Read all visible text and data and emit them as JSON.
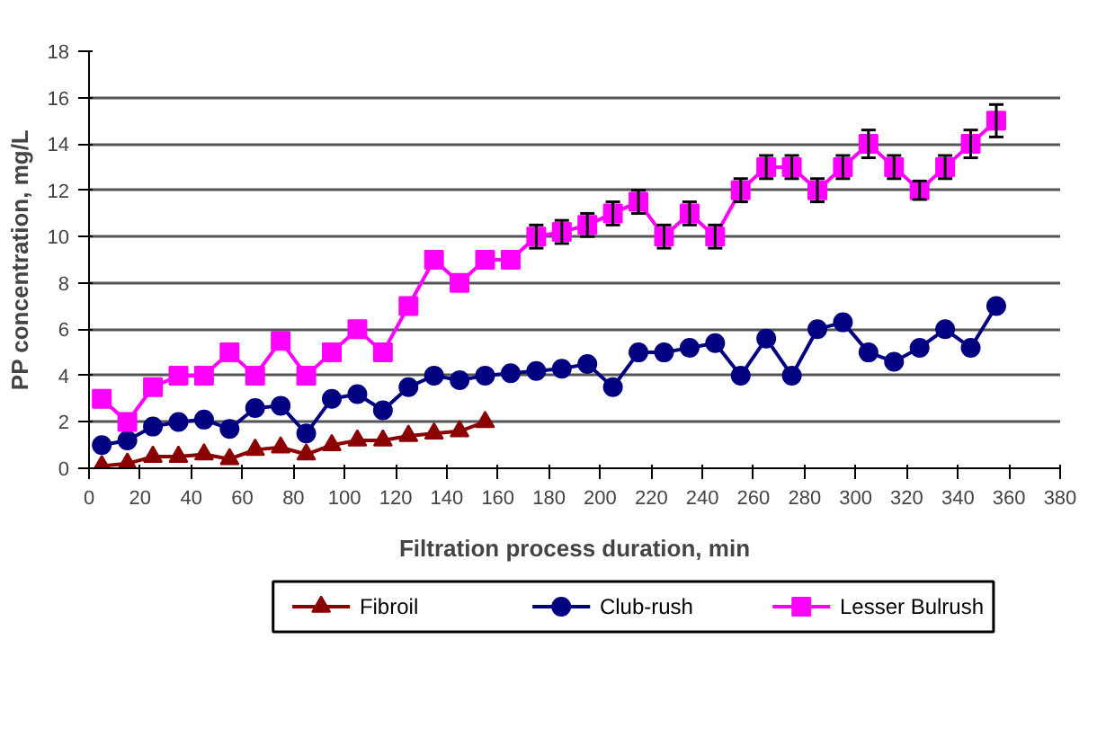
{
  "chart_data": {
    "type": "line",
    "xlabel": "Filtration process duration, min",
    "ylabel": "PP concentration, mg/L",
    "xlim": [
      0,
      380
    ],
    "xticks": [
      0,
      20,
      40,
      60,
      80,
      100,
      120,
      140,
      160,
      180,
      200,
      220,
      240,
      260,
      280,
      300,
      320,
      340,
      360,
      380
    ],
    "ylim": [
      0,
      18
    ],
    "yticks": [
      0,
      2,
      4,
      6,
      8,
      10,
      12,
      14,
      16,
      18
    ],
    "grid": "y",
    "legend": "bottom",
    "line_style": "solid",
    "series": [
      {
        "name": "Fibroil",
        "color": "#8b0000",
        "marker": "triangle",
        "x": [
          5,
          15,
          25,
          35,
          45,
          55,
          65,
          75,
          85,
          95,
          105,
          115,
          125,
          135,
          145,
          155
        ],
        "values": [
          0.1,
          0.2,
          0.5,
          0.5,
          0.6,
          0.4,
          0.8,
          0.9,
          0.6,
          1.0,
          1.2,
          1.2,
          1.4,
          1.5,
          1.6,
          2.0
        ]
      },
      {
        "name": "Club-rush",
        "color": "#000080",
        "marker": "circle",
        "x": [
          5,
          15,
          25,
          35,
          45,
          55,
          65,
          75,
          85,
          95,
          105,
          115,
          125,
          135,
          145,
          155,
          165,
          175,
          185,
          195,
          205,
          215,
          225,
          235,
          245,
          255,
          265,
          275,
          285,
          295,
          305,
          315,
          325,
          335,
          345,
          355
        ],
        "values": [
          1,
          1.2,
          1.8,
          2,
          2.1,
          1.7,
          2.6,
          2.7,
          1.5,
          3,
          3.2,
          2.5,
          3.5,
          4,
          3.8,
          4,
          4.1,
          4.2,
          4.3,
          4.5,
          3.5,
          5,
          5,
          5.2,
          5.4,
          4,
          5.6,
          4,
          6,
          6.3,
          5,
          4.6,
          5.2,
          6,
          5.2,
          7
        ]
      },
      {
        "name": "Lesser Bulrush",
        "color": "#ff00ff",
        "marker": "square",
        "x": [
          5,
          15,
          25,
          35,
          45,
          55,
          65,
          75,
          85,
          95,
          105,
          115,
          125,
          135,
          145,
          155,
          165,
          175,
          185,
          195,
          205,
          215,
          225,
          235,
          245,
          255,
          265,
          275,
          285,
          295,
          305,
          315,
          325,
          335,
          345,
          355
        ],
        "values": [
          3,
          2,
          3.5,
          4,
          4,
          5,
          4,
          5.5,
          4,
          5,
          6,
          5,
          7,
          9,
          8,
          9,
          9,
          10,
          10.2,
          10.5,
          11,
          11.5,
          10,
          11,
          10,
          12,
          13,
          13,
          12,
          13,
          14,
          13,
          12,
          13,
          14,
          15
        ],
        "errors": [
          null,
          null,
          null,
          null,
          null,
          null,
          null,
          null,
          null,
          null,
          null,
          null,
          null,
          null,
          null,
          null,
          null,
          0.5,
          0.5,
          0.5,
          0.5,
          0.5,
          0.5,
          0.5,
          0.5,
          0.5,
          0.5,
          0.5,
          0.5,
          0.5,
          0.6,
          0.5,
          0.4,
          0.5,
          0.6,
          0.7
        ]
      }
    ]
  }
}
